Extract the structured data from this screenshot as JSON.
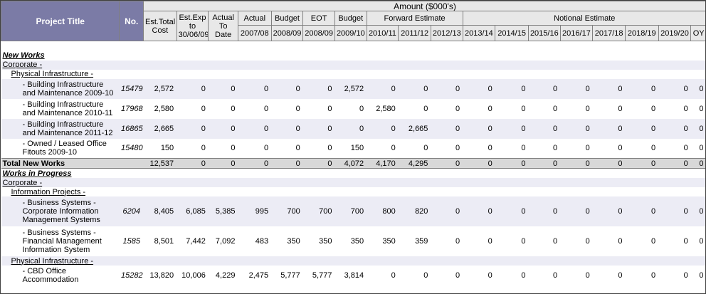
{
  "header": {
    "project_title": "Project Title",
    "no": "No.",
    "amount": "Amount ($000's)",
    "est_total_cost": "Est.Total Cost",
    "est_exp": "Est.Exp to 30/06/09",
    "actual_to_date": "Actual To Date",
    "groups": [
      "Actual",
      "Budget",
      "EOT",
      "Budget",
      "Forward Estimate",
      "Notional Estimate"
    ],
    "years": [
      "2007/08",
      "2008/09",
      "2008/09",
      "2009/10",
      "2010/11",
      "2011/12",
      "2012/13",
      "2013/14",
      "2014/15",
      "2015/16",
      "2016/17",
      "2017/18",
      "2018/19",
      "2019/20",
      "OY"
    ]
  },
  "sections": {
    "new_works": "New Works",
    "corporate_1": "Corporate -",
    "physical_infra_1": "Physical Infrastructure -",
    "total_new_works": "Total New Works",
    "works_in_progress": "Works in Progress",
    "corporate_2": "Corporate -",
    "information_projects": "Information Projects -",
    "physical_infra_2": "Physical Infrastructure -"
  },
  "rows": [
    {
      "title": "- Building Infrastructure and Maintenance 2009-10",
      "no": "15479",
      "values": [
        "2,572",
        "0",
        "0",
        "0",
        "0",
        "0",
        "2,572",
        "0",
        "0",
        "0",
        "0",
        "0",
        "0",
        "0",
        "0",
        "0",
        "0",
        "0"
      ]
    },
    {
      "title": "- Building Infrastructure and Maintenance 2010-11",
      "no": "17968",
      "values": [
        "2,580",
        "0",
        "0",
        "0",
        "0",
        "0",
        "0",
        "2,580",
        "0",
        "0",
        "0",
        "0",
        "0",
        "0",
        "0",
        "0",
        "0",
        "0"
      ]
    },
    {
      "title": "- Building Infrastructure and Maintenance 2011-12",
      "no": "16865",
      "values": [
        "2,665",
        "0",
        "0",
        "0",
        "0",
        "0",
        "0",
        "0",
        "2,665",
        "0",
        "0",
        "0",
        "0",
        "0",
        "0",
        "0",
        "0",
        "0"
      ]
    },
    {
      "title": "- Owned / Leased Office Fitouts 2009-10",
      "no": "15480",
      "values": [
        "150",
        "0",
        "0",
        "0",
        "0",
        "0",
        "150",
        "0",
        "0",
        "0",
        "0",
        "0",
        "0",
        "0",
        "0",
        "0",
        "0",
        "0"
      ]
    },
    {
      "title": "- Business Systems - Corporate Information Management Systems",
      "no": "6204",
      "values": [
        "8,405",
        "6,085",
        "5,385",
        "995",
        "700",
        "700",
        "700",
        "800",
        "820",
        "0",
        "0",
        "0",
        "0",
        "0",
        "0",
        "0",
        "0",
        "0"
      ]
    },
    {
      "title": "- Business Systems - Financial Management Information System",
      "no": "1585",
      "values": [
        "8,501",
        "7,442",
        "7,092",
        "483",
        "350",
        "350",
        "350",
        "350",
        "359",
        "0",
        "0",
        "0",
        "0",
        "0",
        "0",
        "0",
        "0",
        "0"
      ]
    },
    {
      "title": "- CBD Office Accommodation",
      "no": "15282",
      "values": [
        "13,820",
        "10,006",
        "4,229",
        "2,475",
        "5,777",
        "5,777",
        "3,814",
        "0",
        "0",
        "0",
        "0",
        "0",
        "0",
        "0",
        "0",
        "0",
        "0",
        "0"
      ]
    }
  ],
  "total_new_works_values": [
    "12,537",
    "0",
    "0",
    "0",
    "0",
    "0",
    "4,072",
    "4,170",
    "4,295",
    "0",
    "0",
    "0",
    "0",
    "0",
    "0",
    "0",
    "0",
    "0"
  ]
}
